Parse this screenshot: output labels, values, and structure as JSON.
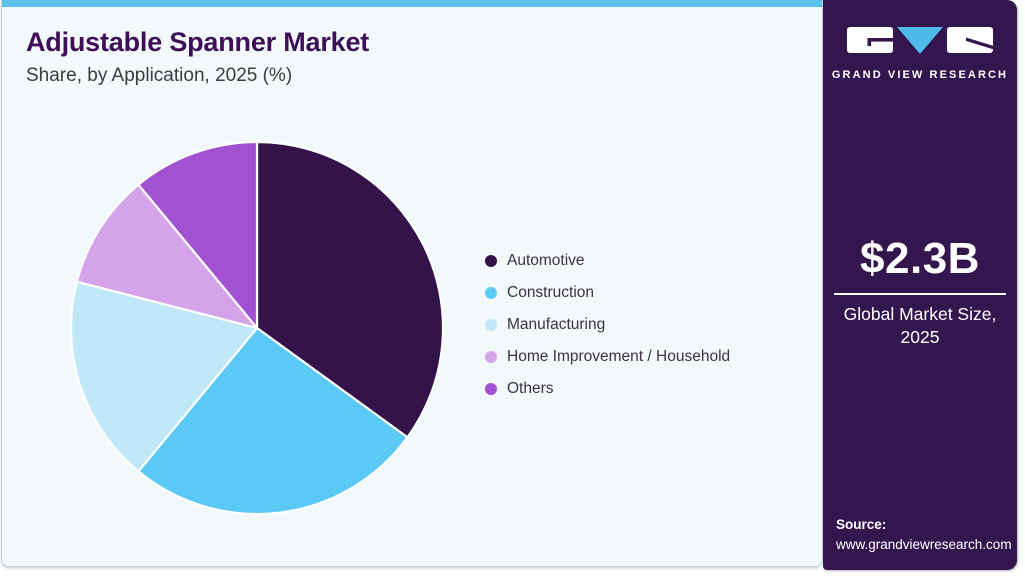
{
  "header": {
    "title": "Adjustable Spanner Market",
    "subtitle": "Share, by Application, 2025 (%)"
  },
  "sidebar": {
    "brand": "GRAND VIEW RESEARCH",
    "market_size": {
      "value": "$2.3B",
      "label_line1": "Global Market Size,",
      "label_line2": "2025"
    },
    "source": {
      "label": "Source:",
      "url": "www.grandviewresearch.com"
    }
  },
  "chart_data": {
    "type": "pie",
    "title": "Adjustable Spanner Market Share, by Application, 2025 (%)",
    "unit": "%",
    "direction": "clockwise",
    "start_angle_deg": 0,
    "legend_position": "right",
    "slices": [
      {
        "label": "Automotive",
        "value": 35,
        "color": "#331349"
      },
      {
        "label": "Construction",
        "value": 26,
        "color": "#5bc9f5"
      },
      {
        "label": "Manufacturing",
        "value": 18,
        "color": "#c0e8f9"
      },
      {
        "label": "Home Improvement / Household",
        "value": 10,
        "color": "#d4a3e9"
      },
      {
        "label": "Others",
        "value": 11,
        "color": "#a251d1"
      }
    ]
  },
  "colors": {
    "accent_cyan": "#5ac2ec",
    "sidebar_bg": "#34164e",
    "title_purple": "#3e0f58",
    "card_bg": "#f3f8fb",
    "logo_triangle_blue": "#4fb9e9"
  }
}
